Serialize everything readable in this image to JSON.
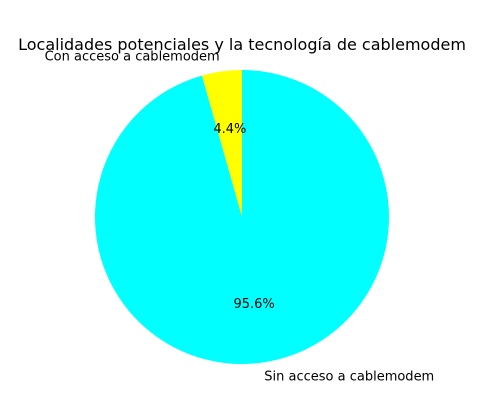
{
  "chart_data": {
    "type": "pie",
    "title": "Localidades potenciales y la tecnología de cablemodem",
    "slices": [
      {
        "label": "Con acceso a cablemodem",
        "value": 4.4,
        "pct_label": "4.4%",
        "color": "#ffff00"
      },
      {
        "label": "Sin acceso a cablemodem",
        "value": 95.6,
        "pct_label": "95.6%",
        "color": "#00ffff"
      }
    ],
    "start_angle_deg": 90,
    "direction": "counterclockwise",
    "legend": "none"
  }
}
